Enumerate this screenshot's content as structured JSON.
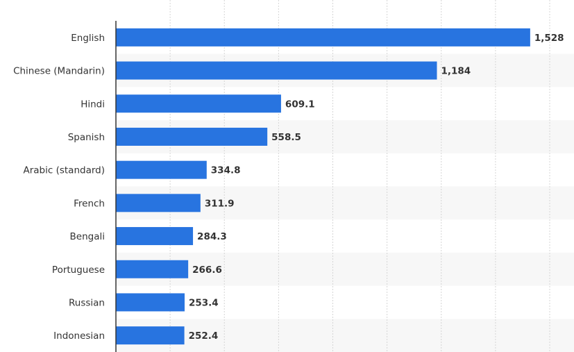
{
  "chart_data": {
    "type": "bar",
    "orientation": "horizontal",
    "title": "",
    "xlabel": "",
    "ylabel": "",
    "categories": [
      "English",
      "Chinese (Mandarin)",
      "Hindi",
      "Spanish",
      "Arabic (standard)",
      "French",
      "Bengali",
      "Portuguese",
      "Russian",
      "Indonesian"
    ],
    "values": [
      1528,
      1184,
      609.1,
      558.5,
      334.8,
      311.9,
      284.3,
      266.6,
      253.4,
      252.4
    ],
    "value_labels": [
      "1,528",
      "1,184",
      "609.1",
      "558.5",
      "334.8",
      "311.9",
      "284.3",
      "266.6",
      "253.4",
      "252.4"
    ],
    "xlim": [
      0,
      1600
    ],
    "grid": true,
    "legend": "none",
    "bar_color": "#2874e0",
    "band_color": "#f7f7f7"
  }
}
